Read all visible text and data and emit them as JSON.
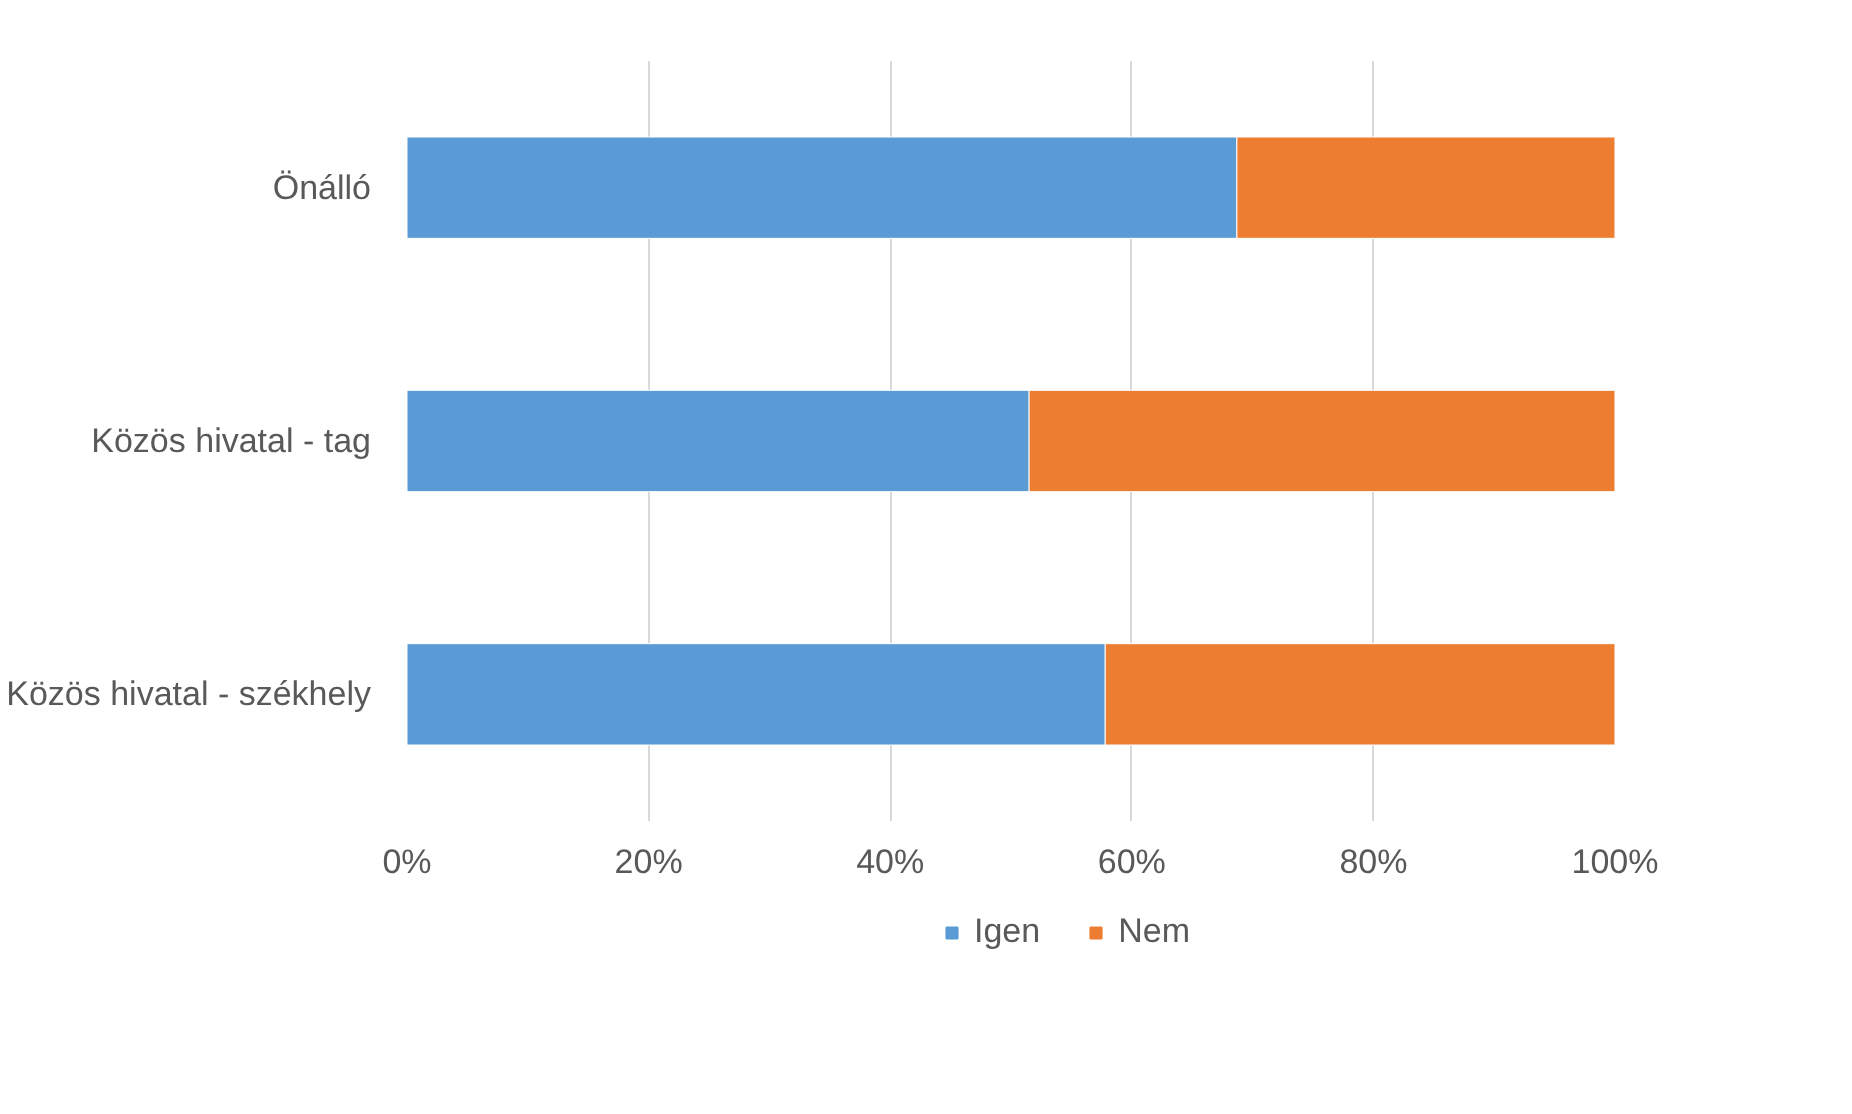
{
  "chart_data": {
    "type": "bar",
    "orientation": "horizontal",
    "stacked": true,
    "categories": [
      "Önálló",
      "Közös hivatal - tag",
      "Közös hivatal - székhely"
    ],
    "series": [
      {
        "name": "Igen",
        "color": "#5b9bd5",
        "values": [
          68.7,
          51.5,
          57.8
        ]
      },
      {
        "name": "Nem",
        "color": "#ed7d31",
        "values": [
          31.3,
          48.5,
          42.2
        ]
      }
    ],
    "xlim": [
      0,
      100
    ],
    "xticks": [
      {
        "value": 0,
        "label": "0%"
      },
      {
        "value": 20,
        "label": "20%"
      },
      {
        "value": 40,
        "label": "40%"
      },
      {
        "value": 60,
        "label": "60%"
      },
      {
        "value": 80,
        "label": "80%"
      },
      {
        "value": 100,
        "label": "100%"
      }
    ],
    "grid": "x",
    "legend": "bottom"
  }
}
